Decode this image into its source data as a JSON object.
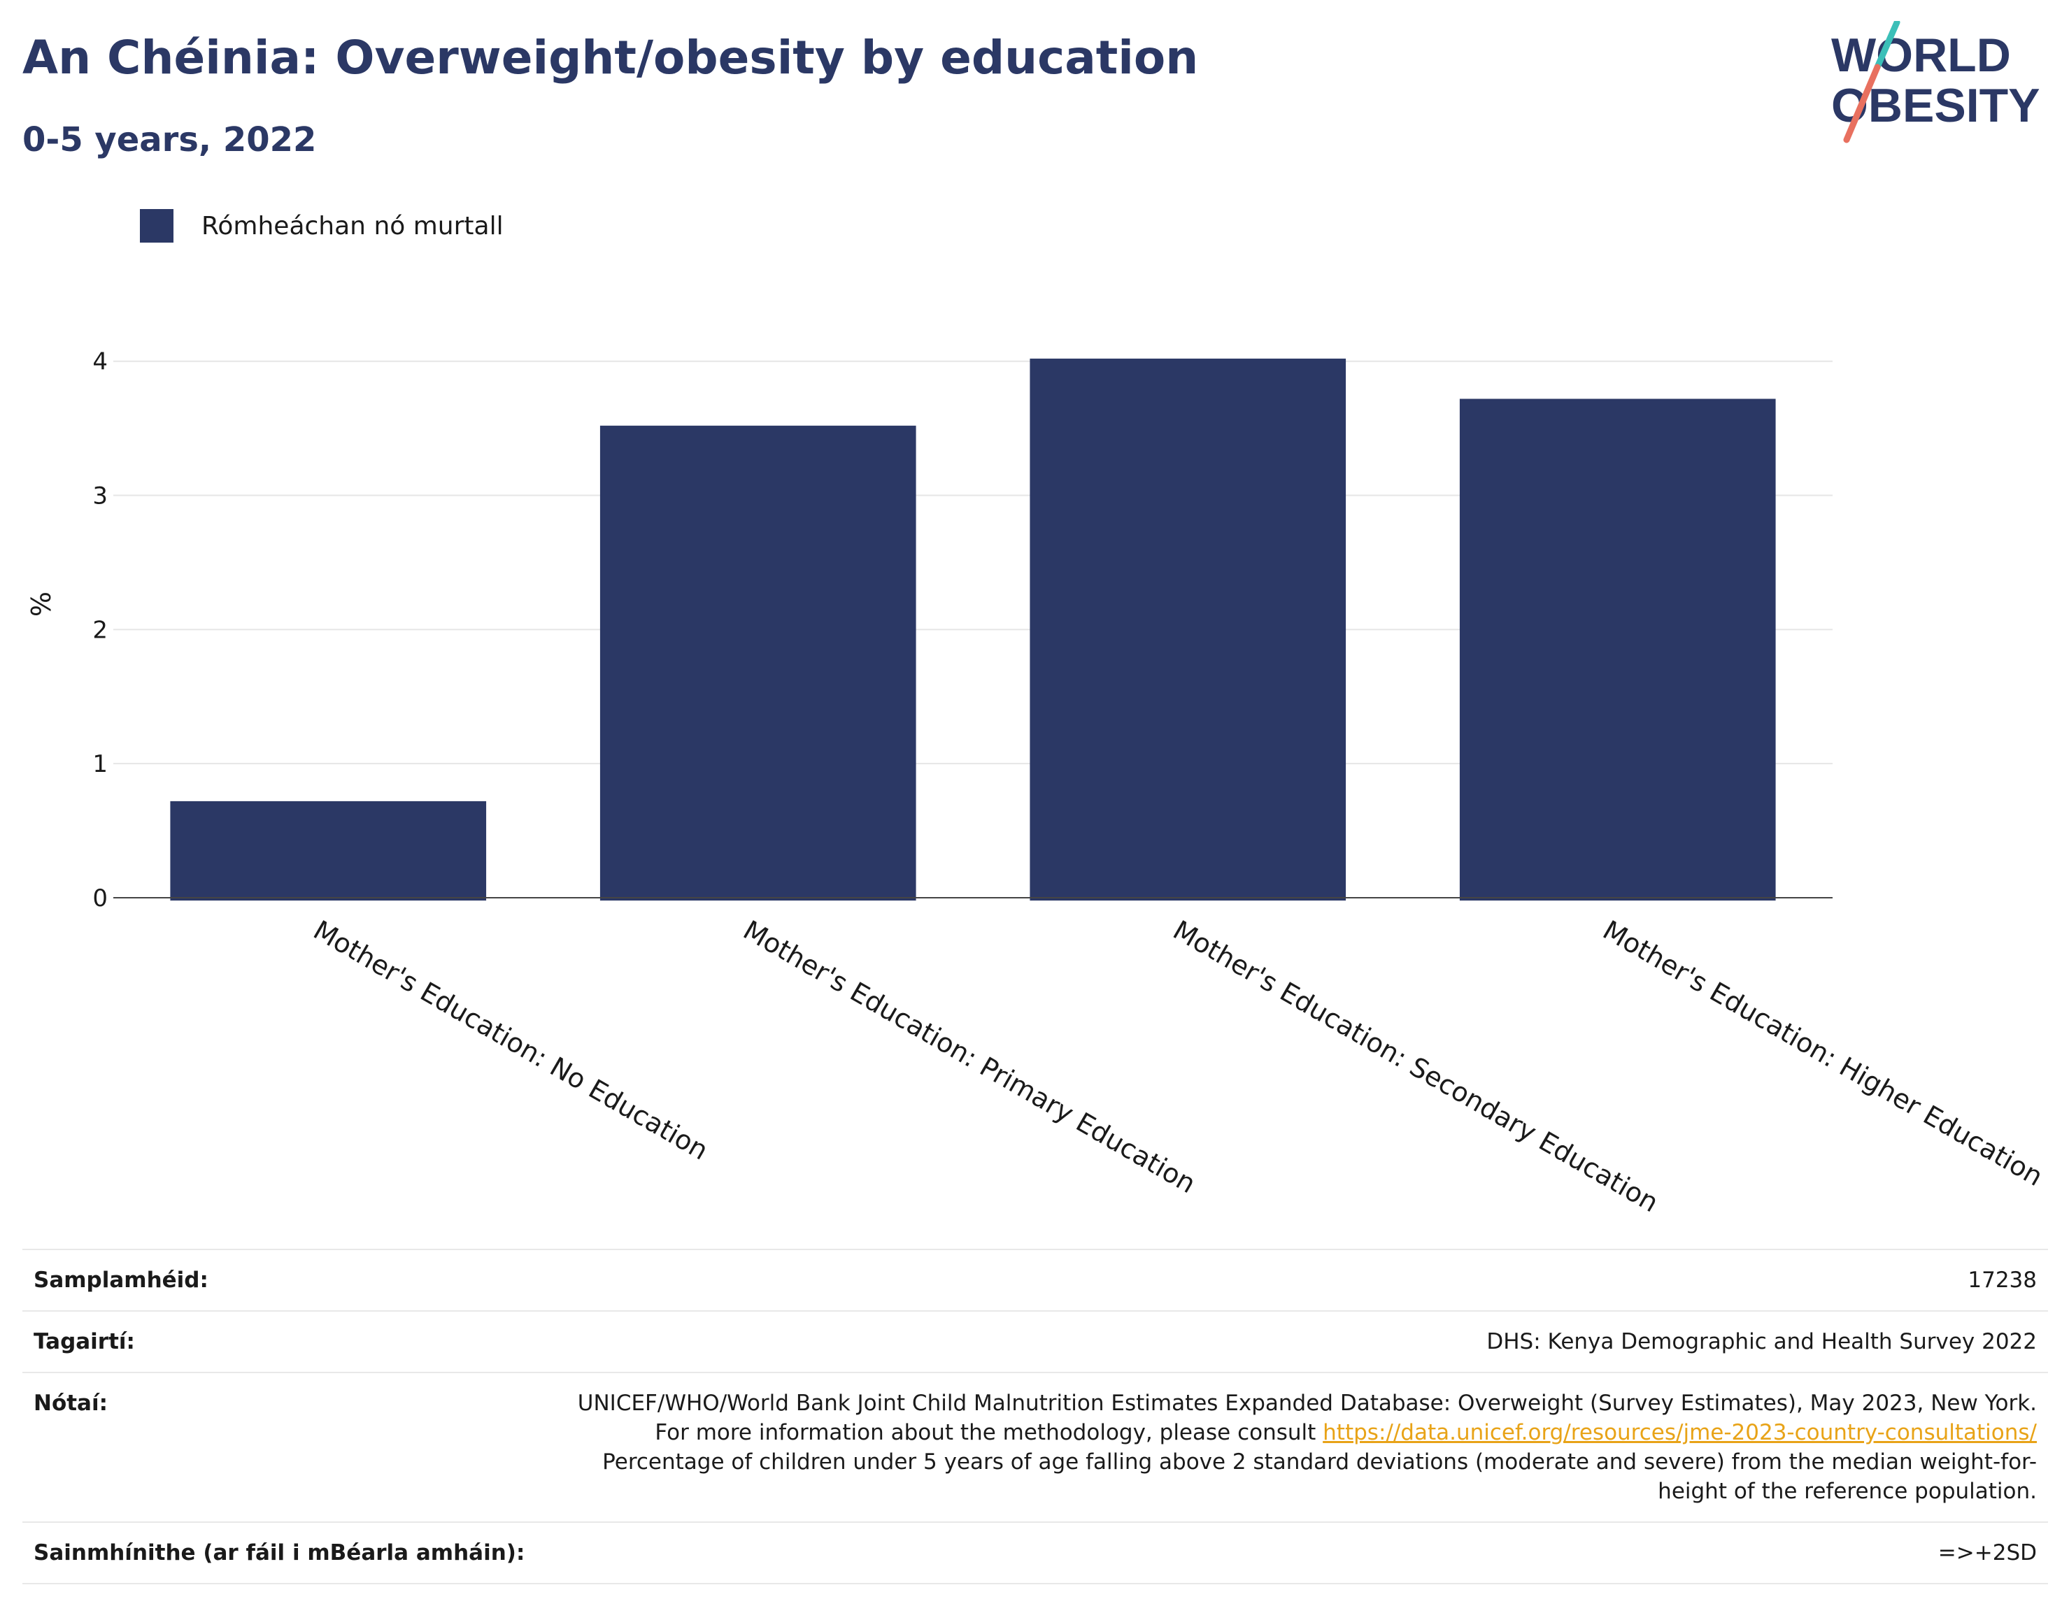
{
  "header": {
    "title": "An Chéinia: Overweight/obesity by education",
    "subtitle": "0-5 years, 2022"
  },
  "logo": {
    "line1": "WORLD",
    "line2": "OBESITY"
  },
  "colors": {
    "bar": "#2b3865",
    "title": "#2b3865",
    "link": "#e8a317",
    "logo_teal": "#3bbfb8",
    "logo_coral": "#e8705f"
  },
  "chart_data": {
    "type": "bar",
    "categories": [
      "Mother's Education: No Education",
      "Mother's Education: Primary Education",
      "Mother's Education: Secondary Education",
      "Mother's Education: Higher Education"
    ],
    "series": [
      {
        "name": "Rómheáchan nó murtall",
        "values": [
          0.72,
          3.52,
          4.02,
          3.72
        ]
      }
    ],
    "ylabel": "%",
    "xlabel": "",
    "ylim": [
      0,
      4.4
    ],
    "yticks": [
      0,
      1,
      2,
      3,
      4
    ],
    "grid": true,
    "legend": "top-left"
  },
  "info": {
    "sample_label": "Samplamhéid:",
    "sample_value": "17238",
    "refs_label": "Tagairtí:",
    "refs_value": "DHS: Kenya Demographic and Health Survey 2022",
    "notes_label": "Nótaí:",
    "notes_text1": "UNICEF/WHO/World Bank Joint Child Malnutrition Estimates Expanded Database: Overweight (Survey Estimates), May 2023, New York. For more information about the methodology, please consult ",
    "notes_link": "https://data.unicef.org/resources/jme-2023-country-consultations/",
    "notes_text2": "Percentage of children under 5 years of age falling above 2 standard deviations (moderate and severe) from the median weight-for-height of the reference population.",
    "defs_label": "Sainmhínithe (ar fáil i mBéarla amháin):",
    "defs_value": "=>+2SD"
  }
}
